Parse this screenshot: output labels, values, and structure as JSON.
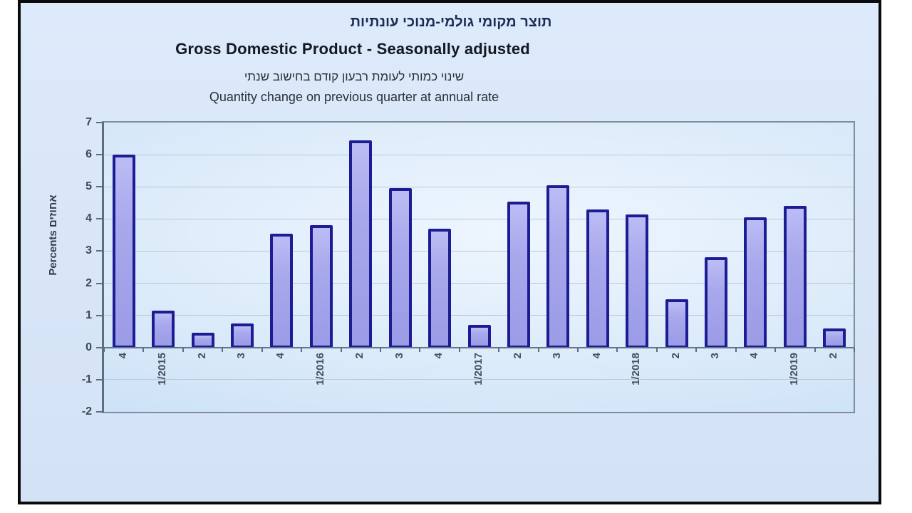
{
  "header": {
    "title_he": "תוצר מקומי גולמי-מנוכי עונתיות",
    "title_en": "Gross Domestic Product - Seasonally adjusted",
    "subtitle_he": "שינוי כמותי לעומת רבעון קודם בחישוב שנתי",
    "subtitle_en": "Quantity change on previous quarter at annual rate"
  },
  "chart_data": {
    "type": "bar",
    "title": "Gross Domestic Product - Seasonally adjusted",
    "subtitle": "Quantity change on previous quarter at annual rate",
    "categories": [
      "4",
      "1/2015",
      "2",
      "3",
      "4",
      "1/2016",
      "2",
      "3",
      "4",
      "1/2017",
      "2",
      "3",
      "4",
      "1/2018",
      "2",
      "3",
      "4",
      "1/2019",
      "2"
    ],
    "values": [
      6.0,
      1.15,
      0.45,
      0.75,
      3.55,
      3.8,
      6.45,
      4.95,
      3.7,
      0.7,
      4.55,
      5.05,
      4.3,
      4.15,
      1.5,
      2.8,
      4.05,
      4.4,
      0.6
    ],
    "xlabel": "",
    "ylabel": "Percents אחוזים",
    "ylim": [
      -2,
      7
    ],
    "yticks": [
      7,
      6,
      5,
      4,
      3,
      2,
      1,
      0,
      -1,
      -2
    ],
    "grid": true,
    "legend": false,
    "colors": {
      "bar_fill": "#a8a8ec",
      "bar_border": "#1c1c95",
      "grid": "#bac8d6",
      "axis": "#5d6e82",
      "plot_border": "#7e8ea0",
      "tick_text": "#3d4856",
      "box_bg": "#d9e7f8",
      "box_border": "#0a0a0a"
    }
  }
}
